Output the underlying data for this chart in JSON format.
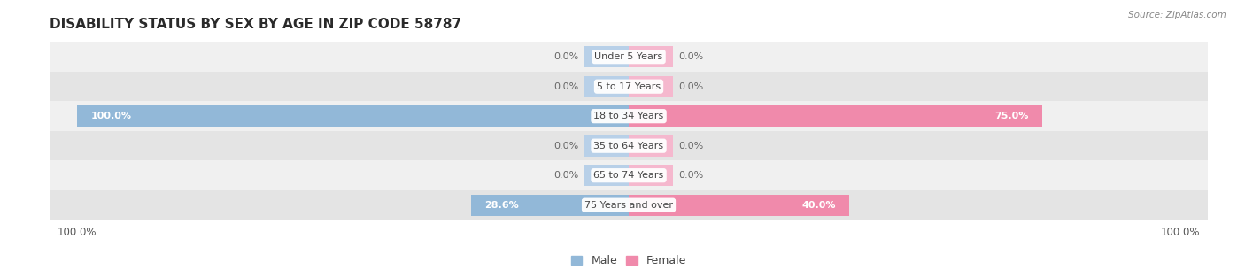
{
  "title": "Disability Status by Sex by Age in Zip Code 58787",
  "source": "Source: ZipAtlas.com",
  "categories": [
    "Under 5 Years",
    "5 to 17 Years",
    "18 to 34 Years",
    "35 to 64 Years",
    "65 to 74 Years",
    "75 Years and over"
  ],
  "male_values": [
    0.0,
    0.0,
    100.0,
    0.0,
    0.0,
    28.6
  ],
  "female_values": [
    0.0,
    0.0,
    75.0,
    0.0,
    0.0,
    40.0
  ],
  "male_color": "#92b8d8",
  "female_color": "#f08aab",
  "male_stub_color": "#b8d0e8",
  "female_stub_color": "#f5b8ce",
  "row_colors": [
    "#f0f0f0",
    "#e4e4e4",
    "#f0f0f0",
    "#e4e4e4",
    "#f0f0f0",
    "#e4e4e4"
  ],
  "max_value": 100.0,
  "stub_value": 8.0,
  "title_fontsize": 11,
  "tick_fontsize": 8.5,
  "legend_fontsize": 9,
  "cat_fontsize": 8,
  "val_fontsize": 8
}
